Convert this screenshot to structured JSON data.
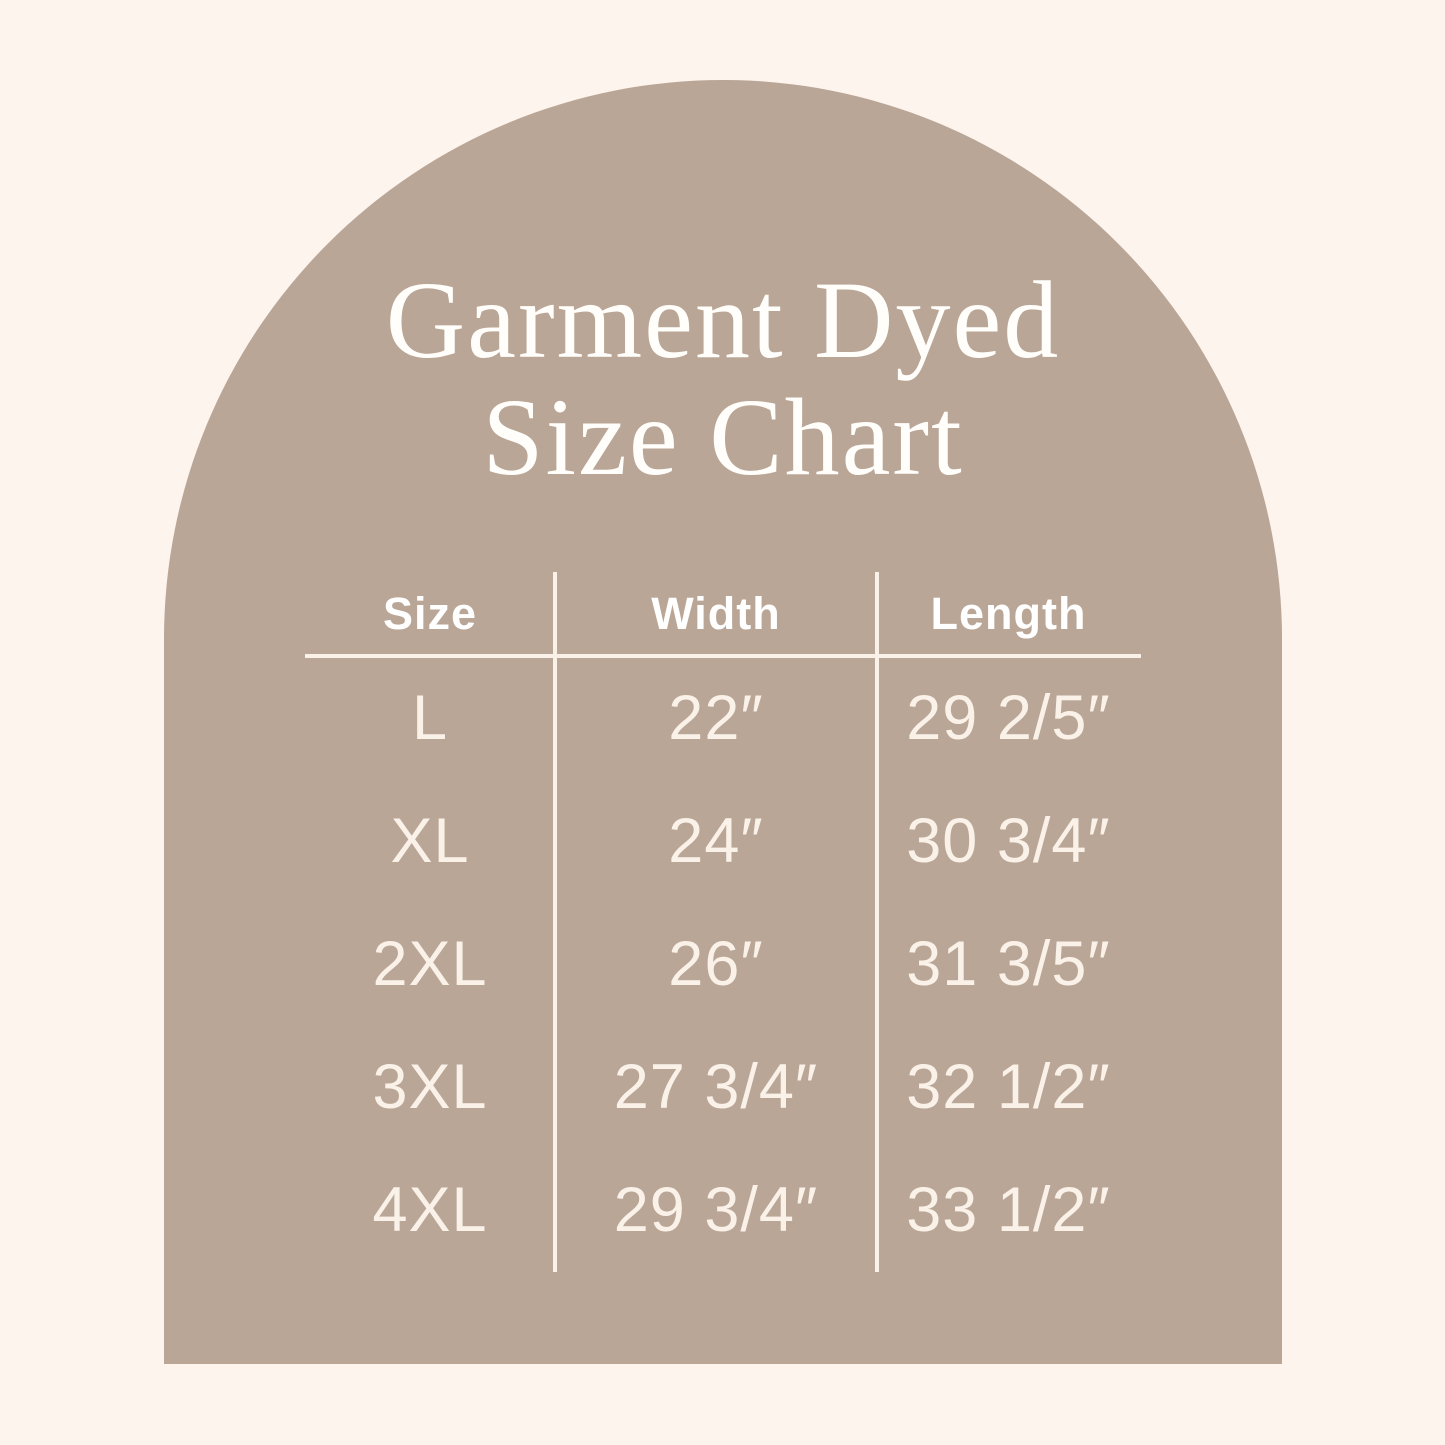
{
  "title": {
    "line1": "Garment Dyed",
    "line2": "Size Chart"
  },
  "colors": {
    "background": "#FDF4EE",
    "arch": "#BAA696",
    "line": "#FAF2E9",
    "table-text": "#FAF2E9",
    "header-text": "#FFFFFF",
    "title-text": "#FFFEFB"
  },
  "chart_data": {
    "type": "table",
    "title": "Garment Dyed Size Chart",
    "columns": [
      "Size",
      "Width",
      "Length"
    ],
    "rows": [
      [
        "L",
        "22″",
        "29 2/5″"
      ],
      [
        "XL",
        "24″",
        "30 3/4″"
      ],
      [
        "2XL",
        "26″",
        "31 3/5″"
      ],
      [
        "3XL",
        "27 3/4″",
        "32 1/2″"
      ],
      [
        "4XL",
        "29 3/4″",
        "33 1/2″"
      ]
    ]
  }
}
